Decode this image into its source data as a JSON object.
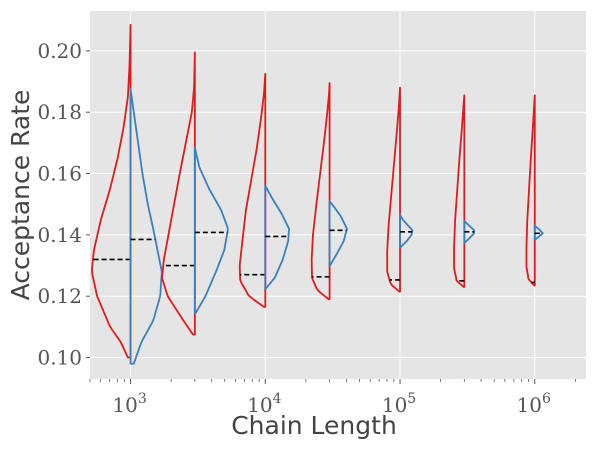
{
  "chart_data": {
    "type": "violin",
    "title": "",
    "xlabel": "Chain Length",
    "ylabel": "Acceptance Rate",
    "xscale": "log",
    "xlim": [
      500,
      2400000
    ],
    "ylim": [
      0.093,
      0.213
    ],
    "grid": true,
    "x_ticks": [
      {
        "value": 1000,
        "base": "10",
        "exp": "3"
      },
      {
        "value": 10000,
        "base": "10",
        "exp": "4"
      },
      {
        "value": 100000,
        "base": "10",
        "exp": "5"
      },
      {
        "value": 1000000,
        "base": "10",
        "exp": "6"
      }
    ],
    "y_ticks": [
      "0.10",
      "0.12",
      "0.14",
      "0.16",
      "0.18",
      "0.20"
    ],
    "colors": {
      "left": "#e31a1c",
      "right": "#3a7fc0",
      "median": "#000000",
      "background": "#e5e5e5",
      "grid": "#ffffff"
    },
    "groups": [
      {
        "x": 1000,
        "left": {
          "min": 0.1,
          "max": 0.2085,
          "median": 0.132,
          "max_width": 0.4,
          "profile": [
            [
              0.1,
              0.05
            ],
            [
              0.105,
              0.18
            ],
            [
              0.11,
              0.38
            ],
            [
              0.12,
              0.62
            ],
            [
              0.128,
              0.72
            ],
            [
              0.135,
              0.68
            ],
            [
              0.145,
              0.55
            ],
            [
              0.155,
              0.38
            ],
            [
              0.165,
              0.24
            ],
            [
              0.175,
              0.13
            ],
            [
              0.185,
              0.05
            ],
            [
              0.195,
              0.02
            ],
            [
              0.2085,
              0.0
            ]
          ]
        },
        "right": {
          "min": 0.098,
          "max": 0.1875,
          "median": 0.1385,
          "max_width": 0.4,
          "profile": [
            [
              0.098,
              0.06
            ],
            [
              0.105,
              0.2
            ],
            [
              0.112,
              0.42
            ],
            [
              0.12,
              0.55
            ],
            [
              0.128,
              0.58
            ],
            [
              0.135,
              0.5
            ],
            [
              0.142,
              0.42
            ],
            [
              0.15,
              0.32
            ],
            [
              0.16,
              0.22
            ],
            [
              0.17,
              0.14
            ],
            [
              0.18,
              0.06
            ],
            [
              0.1875,
              0.0
            ]
          ]
        }
      },
      {
        "x": 3000,
        "left": {
          "min": 0.1075,
          "max": 0.1995,
          "median": 0.13,
          "max_width": 0.28,
          "profile": [
            [
              0.1075,
              0.05
            ],
            [
              0.112,
              0.3
            ],
            [
              0.12,
              0.72
            ],
            [
              0.126,
              0.87
            ],
            [
              0.132,
              0.82
            ],
            [
              0.14,
              0.7
            ],
            [
              0.15,
              0.55
            ],
            [
              0.16,
              0.4
            ],
            [
              0.17,
              0.24
            ],
            [
              0.18,
              0.08
            ],
            [
              0.188,
              0.02
            ],
            [
              0.1995,
              0.0
            ]
          ]
        },
        "right": {
          "min": 0.1145,
          "max": 0.1685,
          "median": 0.1408,
          "max_width": 0.28,
          "profile": [
            [
              0.1145,
              0.02
            ],
            [
              0.12,
              0.28
            ],
            [
              0.128,
              0.56
            ],
            [
              0.135,
              0.78
            ],
            [
              0.142,
              0.88
            ],
            [
              0.148,
              0.7
            ],
            [
              0.155,
              0.38
            ],
            [
              0.162,
              0.12
            ],
            [
              0.1685,
              0.0
            ]
          ]
        }
      },
      {
        "x": 10000,
        "left": {
          "min": 0.1165,
          "max": 0.1925,
          "median": 0.127,
          "max_width": 0.2,
          "profile": [
            [
              0.1165,
              0.05
            ],
            [
              0.12,
              0.6
            ],
            [
              0.125,
              0.93
            ],
            [
              0.13,
              0.95
            ],
            [
              0.138,
              0.85
            ],
            [
              0.148,
              0.72
            ],
            [
              0.158,
              0.52
            ],
            [
              0.168,
              0.32
            ],
            [
              0.178,
              0.16
            ],
            [
              0.186,
              0.05
            ],
            [
              0.1925,
              0.0
            ]
          ]
        },
        "right": {
          "min": 0.1225,
          "max": 0.156,
          "median": 0.1395,
          "max_width": 0.2,
          "profile": [
            [
              0.1225,
              0.02
            ],
            [
              0.126,
              0.35
            ],
            [
              0.132,
              0.65
            ],
            [
              0.138,
              0.85
            ],
            [
              0.142,
              0.88
            ],
            [
              0.147,
              0.6
            ],
            [
              0.152,
              0.25
            ],
            [
              0.156,
              0.0
            ]
          ]
        }
      },
      {
        "x": 30000,
        "left": {
          "min": 0.119,
          "max": 0.1895,
          "median": 0.1263,
          "max_width": 0.14,
          "profile": [
            [
              0.119,
              0.05
            ],
            [
              0.122,
              0.65
            ],
            [
              0.126,
              0.93
            ],
            [
              0.132,
              0.95
            ],
            [
              0.14,
              0.88
            ],
            [
              0.15,
              0.7
            ],
            [
              0.16,
              0.5
            ],
            [
              0.17,
              0.3
            ],
            [
              0.18,
              0.12
            ],
            [
              0.186,
              0.03
            ],
            [
              0.1895,
              0.0
            ]
          ]
        },
        "right": {
          "min": 0.13,
          "max": 0.151,
          "median": 0.1415,
          "max_width": 0.14,
          "profile": [
            [
              0.13,
              0.02
            ],
            [
              0.134,
              0.4
            ],
            [
              0.138,
              0.75
            ],
            [
              0.142,
              0.92
            ],
            [
              0.146,
              0.6
            ],
            [
              0.149,
              0.25
            ],
            [
              0.151,
              0.0
            ]
          ]
        }
      },
      {
        "x": 100000,
        "left": {
          "min": 0.1215,
          "max": 0.188,
          "median": 0.1253,
          "max_width": 0.1,
          "profile": [
            [
              0.1215,
              0.05
            ],
            [
              0.124,
              0.7
            ],
            [
              0.128,
              0.95
            ],
            [
              0.135,
              0.95
            ],
            [
              0.143,
              0.85
            ],
            [
              0.153,
              0.65
            ],
            [
              0.163,
              0.45
            ],
            [
              0.173,
              0.25
            ],
            [
              0.181,
              0.1
            ],
            [
              0.188,
              0.0
            ]
          ]
        },
        "right": {
          "min": 0.136,
          "max": 0.1465,
          "median": 0.141,
          "max_width": 0.1,
          "profile": [
            [
              0.136,
              0.05
            ],
            [
              0.138,
              0.5
            ],
            [
              0.14,
              0.85
            ],
            [
              0.1415,
              0.92
            ],
            [
              0.1435,
              0.5
            ],
            [
              0.145,
              0.2
            ],
            [
              0.1465,
              0.0
            ]
          ]
        }
      },
      {
        "x": 300000,
        "left": {
          "min": 0.123,
          "max": 0.1855,
          "median": 0.125,
          "max_width": 0.08,
          "profile": [
            [
              0.123,
              0.05
            ],
            [
              0.125,
              0.7
            ],
            [
              0.129,
              0.95
            ],
            [
              0.136,
              0.95
            ],
            [
              0.145,
              0.85
            ],
            [
              0.155,
              0.65
            ],
            [
              0.165,
              0.45
            ],
            [
              0.175,
              0.22
            ],
            [
              0.182,
              0.08
            ],
            [
              0.1855,
              0.0
            ]
          ]
        },
        "right": {
          "min": 0.1375,
          "max": 0.1445,
          "median": 0.141,
          "max_width": 0.08,
          "profile": [
            [
              0.1375,
              0.05
            ],
            [
              0.139,
              0.5
            ],
            [
              0.1405,
              0.9
            ],
            [
              0.1415,
              0.92
            ],
            [
              0.143,
              0.45
            ],
            [
              0.1445,
              0.0
            ]
          ]
        }
      },
      {
        "x": 1000000,
        "left": {
          "min": 0.1235,
          "max": 0.1855,
          "median": 0.1245,
          "max_width": 0.065,
          "profile": [
            [
              0.1235,
              0.05
            ],
            [
              0.1255,
              0.7
            ],
            [
              0.1295,
              0.95
            ],
            [
              0.136,
              0.95
            ],
            [
              0.145,
              0.85
            ],
            [
              0.155,
              0.65
            ],
            [
              0.165,
              0.45
            ],
            [
              0.175,
              0.22
            ],
            [
              0.182,
              0.08
            ],
            [
              0.1855,
              0.0
            ]
          ]
        },
        "right": {
          "min": 0.1385,
          "max": 0.143,
          "median": 0.1405,
          "max_width": 0.065,
          "profile": [
            [
              0.1385,
              0.05
            ],
            [
              0.1395,
              0.5
            ],
            [
              0.1405,
              0.92
            ],
            [
              0.1415,
              0.6
            ],
            [
              0.143,
              0.0
            ]
          ]
        }
      }
    ]
  }
}
